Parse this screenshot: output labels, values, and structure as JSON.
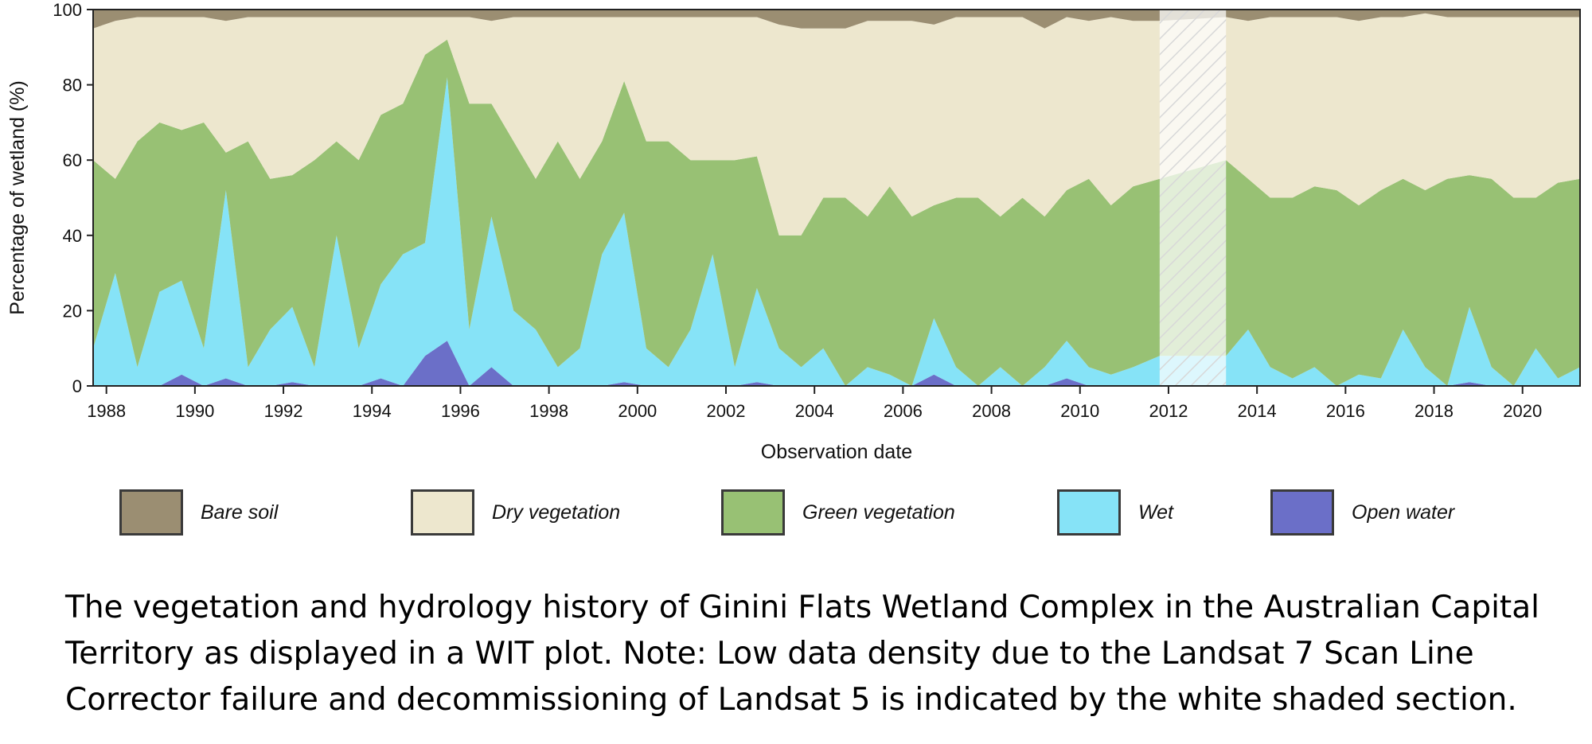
{
  "caption": "The vegetation and hydrology history of Ginini Flats Wetland Complex in the Australian Capital Territory as displayed in a WIT plot. Note: Low data density due to the Landsat 7 Scan Line Corrector failure and decommissioning of Landsat 5 is indicated by the white shaded section.",
  "chart_data": {
    "type": "area",
    "stacked": true,
    "title": "",
    "xlabel": "Observation date",
    "ylabel": "Percentage of wetland (%)",
    "xlim": [
      1987.7,
      2021.3
    ],
    "ylim": [
      0,
      100
    ],
    "xticks": [
      "1988",
      "1990",
      "1992",
      "1994",
      "1996",
      "1998",
      "2000",
      "2002",
      "2004",
      "2006",
      "2008",
      "2010",
      "2012",
      "2014",
      "2016",
      "2018",
      "2020"
    ],
    "yticks": [
      "0",
      "20",
      "40",
      "60",
      "80",
      "100"
    ],
    "grid": false,
    "legend_position": "bottom",
    "shaded_region": {
      "x": [
        2011.8,
        2013.3
      ],
      "note": "Low data density"
    },
    "x": [
      1987.7,
      1988.2,
      1988.7,
      1989.2,
      1989.7,
      1990.2,
      1990.7,
      1991.2,
      1991.7,
      1992.2,
      1992.7,
      1993.2,
      1993.7,
      1994.2,
      1994.7,
      1995.2,
      1995.7,
      1996.2,
      1996.7,
      1997.2,
      1997.7,
      1998.2,
      1998.7,
      1999.2,
      1999.7,
      2000.2,
      2000.7,
      2001.2,
      2001.7,
      2002.2,
      2002.7,
      2003.2,
      2003.7,
      2004.2,
      2004.7,
      2005.2,
      2005.7,
      2006.2,
      2006.7,
      2007.2,
      2007.7,
      2008.2,
      2008.7,
      2009.2,
      2009.7,
      2010.2,
      2010.7,
      2011.2,
      2011.8,
      2013.3,
      2013.8,
      2014.3,
      2014.8,
      2015.3,
      2015.8,
      2016.3,
      2016.8,
      2017.3,
      2017.8,
      2018.3,
      2018.8,
      2019.3,
      2019.8,
      2020.3,
      2020.8,
      2021.3
    ],
    "series": [
      {
        "name": "Open water",
        "color": "#6b6fc8",
        "values": [
          0,
          0,
          0,
          0,
          3,
          0,
          2,
          0,
          0,
          1,
          0,
          0,
          0,
          2,
          0,
          8,
          12,
          0,
          5,
          0,
          0,
          0,
          0,
          0,
          1,
          0,
          0,
          0,
          0,
          0,
          1,
          0,
          0,
          0,
          0,
          0,
          0,
          0,
          3,
          0,
          0,
          0,
          0,
          0,
          2,
          0,
          0,
          0,
          0,
          0,
          0,
          0,
          0,
          0,
          0,
          0,
          0,
          0,
          0,
          0,
          1,
          0,
          0,
          0,
          0,
          0
        ]
      },
      {
        "name": "Wet",
        "color": "#86e3f7",
        "values": [
          10,
          30,
          5,
          25,
          25,
          10,
          50,
          5,
          15,
          20,
          5,
          40,
          10,
          25,
          35,
          30,
          70,
          15,
          40,
          20,
          15,
          5,
          10,
          35,
          45,
          10,
          5,
          15,
          35,
          5,
          25,
          10,
          5,
          10,
          0,
          5,
          3,
          0,
          15,
          5,
          0,
          5,
          0,
          5,
          10,
          5,
          3,
          5,
          8,
          8,
          15,
          5,
          2,
          5,
          0,
          3,
          2,
          15,
          5,
          0,
          20,
          5,
          0,
          10,
          2,
          5
        ]
      },
      {
        "name": "Green vegetation",
        "color": "#98c174",
        "values": [
          50,
          25,
          60,
          45,
          40,
          60,
          10,
          60,
          40,
          35,
          55,
          25,
          50,
          45,
          40,
          50,
          10,
          60,
          30,
          45,
          40,
          60,
          45,
          30,
          35,
          55,
          60,
          45,
          25,
          55,
          35,
          30,
          35,
          40,
          50,
          40,
          50,
          45,
          30,
          45,
          50,
          40,
          50,
          40,
          40,
          50,
          45,
          48,
          47,
          52,
          40,
          45,
          48,
          48,
          52,
          45,
          50,
          40,
          47,
          55,
          35,
          50,
          50,
          40,
          52,
          50
        ]
      },
      {
        "name": "Dry vegetation",
        "color": "#ede7ce",
        "values": [
          35,
          42,
          33,
          28,
          30,
          28,
          35,
          33,
          43,
          42,
          38,
          33,
          38,
          26,
          23,
          10,
          6,
          23,
          22,
          33,
          43,
          33,
          43,
          33,
          17,
          33,
          33,
          38,
          38,
          38,
          37,
          56,
          55,
          45,
          45,
          52,
          44,
          52,
          48,
          48,
          48,
          53,
          48,
          50,
          46,
          42,
          50,
          44,
          42,
          38,
          42,
          48,
          48,
          45,
          46,
          49,
          46,
          43,
          47,
          43,
          42,
          43,
          48,
          48,
          44,
          43
        ]
      },
      {
        "name": "Bare soil",
        "color": "#9b8e72",
        "values": [
          5,
          3,
          2,
          2,
          2,
          2,
          3,
          2,
          2,
          2,
          2,
          2,
          2,
          2,
          2,
          2,
          2,
          2,
          3,
          2,
          2,
          2,
          2,
          2,
          2,
          2,
          2,
          2,
          2,
          2,
          2,
          4,
          5,
          5,
          5,
          3,
          3,
          3,
          4,
          2,
          2,
          2,
          2,
          5,
          2,
          3,
          2,
          3,
          3,
          2,
          3,
          2,
          2,
          2,
          2,
          3,
          2,
          2,
          1,
          2,
          2,
          2,
          2,
          2,
          2,
          2
        ]
      }
    ]
  }
}
